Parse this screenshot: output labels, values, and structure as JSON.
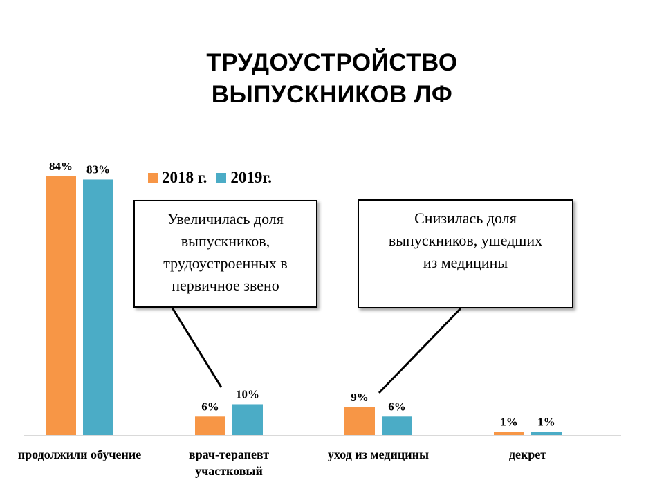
{
  "title": [
    "ТРУДОУСТРОЙСТВО",
    "ВЫПУСКНИКОВ ЛФ"
  ],
  "legend": [
    {
      "label": "2018  г.",
      "color": "#F79646"
    },
    {
      "label": "2019г.",
      "color": "#4BACC6"
    }
  ],
  "callouts": [
    {
      "lines": [
        "Увеличилась доля",
        "выпускников,",
        "трудоустроенных в",
        "первичное звено"
      ]
    },
    {
      "lines": [
        "Снизилась доля",
        "выпускников, ушедших",
        "из медицины"
      ]
    }
  ],
  "chart_data": {
    "type": "bar",
    "categories": [
      [
        "продолжили обучение"
      ],
      [
        "врач-терапевт",
        "участковый"
      ],
      [
        "уход из медицины"
      ],
      [
        "декрет"
      ]
    ],
    "series": [
      {
        "name": "2018  г.",
        "color": "#F79646",
        "values": [
          84,
          6,
          9,
          1
        ],
        "labels": [
          "84%",
          "6%",
          "9%",
          "1%"
        ]
      },
      {
        "name": "2019г.",
        "color": "#4BACC6",
        "values": [
          83,
          10,
          6,
          1
        ],
        "labels": [
          "83%",
          "10%",
          "6%",
          "1%"
        ]
      }
    ],
    "ylim": [
      0,
      84
    ],
    "grid": false,
    "legend_position": "top"
  }
}
